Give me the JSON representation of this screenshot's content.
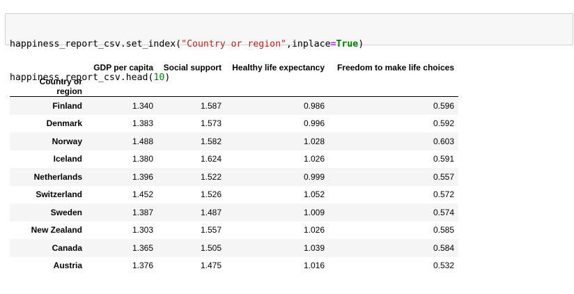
{
  "code_cell": {
    "line1": {
      "prefix": "happiness_report_csv.set_index(",
      "string": "\"Country or region\"",
      "mid": ",inplace",
      "op": "=",
      "keyword": "True",
      "suffix": ")"
    },
    "line2": {
      "prefix": "happiness_report_csv.head(",
      "number": "10",
      "suffix": ")"
    }
  },
  "table": {
    "columns": [
      "GDP per capita",
      "Social support",
      "Healthy life expectancy",
      "Freedom to make life choices"
    ],
    "index_name": "Country or region",
    "rows": [
      {
        "index": "Finland",
        "values": [
          "1.340",
          "1.587",
          "0.986",
          "0.596"
        ]
      },
      {
        "index": "Denmark",
        "values": [
          "1.383",
          "1.573",
          "0.996",
          "0.592"
        ]
      },
      {
        "index": "Norway",
        "values": [
          "1.488",
          "1.582",
          "1.028",
          "0.603"
        ]
      },
      {
        "index": "Iceland",
        "values": [
          "1.380",
          "1.624",
          "1.026",
          "0.591"
        ]
      },
      {
        "index": "Netherlands",
        "values": [
          "1.396",
          "1.522",
          "0.999",
          "0.557"
        ]
      },
      {
        "index": "Switzerland",
        "values": [
          "1.452",
          "1.526",
          "1.052",
          "0.572"
        ]
      },
      {
        "index": "Sweden",
        "values": [
          "1.387",
          "1.487",
          "1.009",
          "0.574"
        ]
      },
      {
        "index": "New Zealand",
        "values": [
          "1.303",
          "1.557",
          "1.026",
          "0.585"
        ]
      },
      {
        "index": "Canada",
        "values": [
          "1.365",
          "1.505",
          "1.039",
          "0.584"
        ]
      },
      {
        "index": "Austria",
        "values": [
          "1.376",
          "1.475",
          "1.016",
          "0.532"
        ]
      }
    ]
  }
}
